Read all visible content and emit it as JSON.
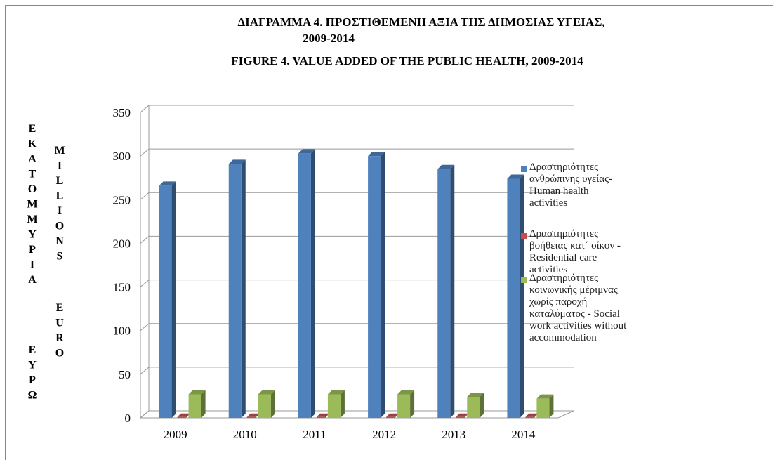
{
  "chart_data": {
    "type": "bar",
    "title": "ΔΙΑΓΡΑΜΜΑ  4.  ΠΡΟΣΤΙΘΕΜΕΝΗ ΑΞΙΑ ΤΗΣ ΔΗΜΟΣΙΑΣ ΥΓΕΙΑΣ,",
    "title_years": "2009-2014",
    "subtitle": "FIGURE          4.  VALUE ADDED OF THE PUBLIC HEALTH, 2009-2014",
    "y_label": [
      "ΕΚΑΤΟΜΜΥΡΙΑ",
      "ΕΥΡΩ"
    ],
    "y_label_en": [
      "MILLIONS",
      "EURO"
    ],
    "categories": [
      "2009",
      "2010",
      "2011",
      "2012",
      "2013",
      "2014"
    ],
    "series": [
      {
        "name": "Δραστηριότητες ανθρώπινης υγείας- Human health activities",
        "color": "#4f81bd",
        "values": [
          266,
          291,
          303,
          300,
          285,
          274
        ]
      },
      {
        "name": "Δραστηριότητες βοήθειας κατ΄ οίκον - Residential care activities",
        "color": "#c0504d",
        "values": [
          1,
          1,
          1,
          1,
          1,
          1
        ]
      },
      {
        "name": "Δραστηριότητες κοινωνικής μέριμνας χωρίς παροχή καταλύματος - Social work activities without accommodation",
        "color": "#9bbb59",
        "values": [
          27,
          27,
          27,
          27,
          24,
          22
        ]
      }
    ],
    "ylim": [
      0,
      350
    ],
    "yticks": [
      0,
      50,
      100,
      150,
      200,
      250,
      300,
      350
    ],
    "grid": true
  }
}
